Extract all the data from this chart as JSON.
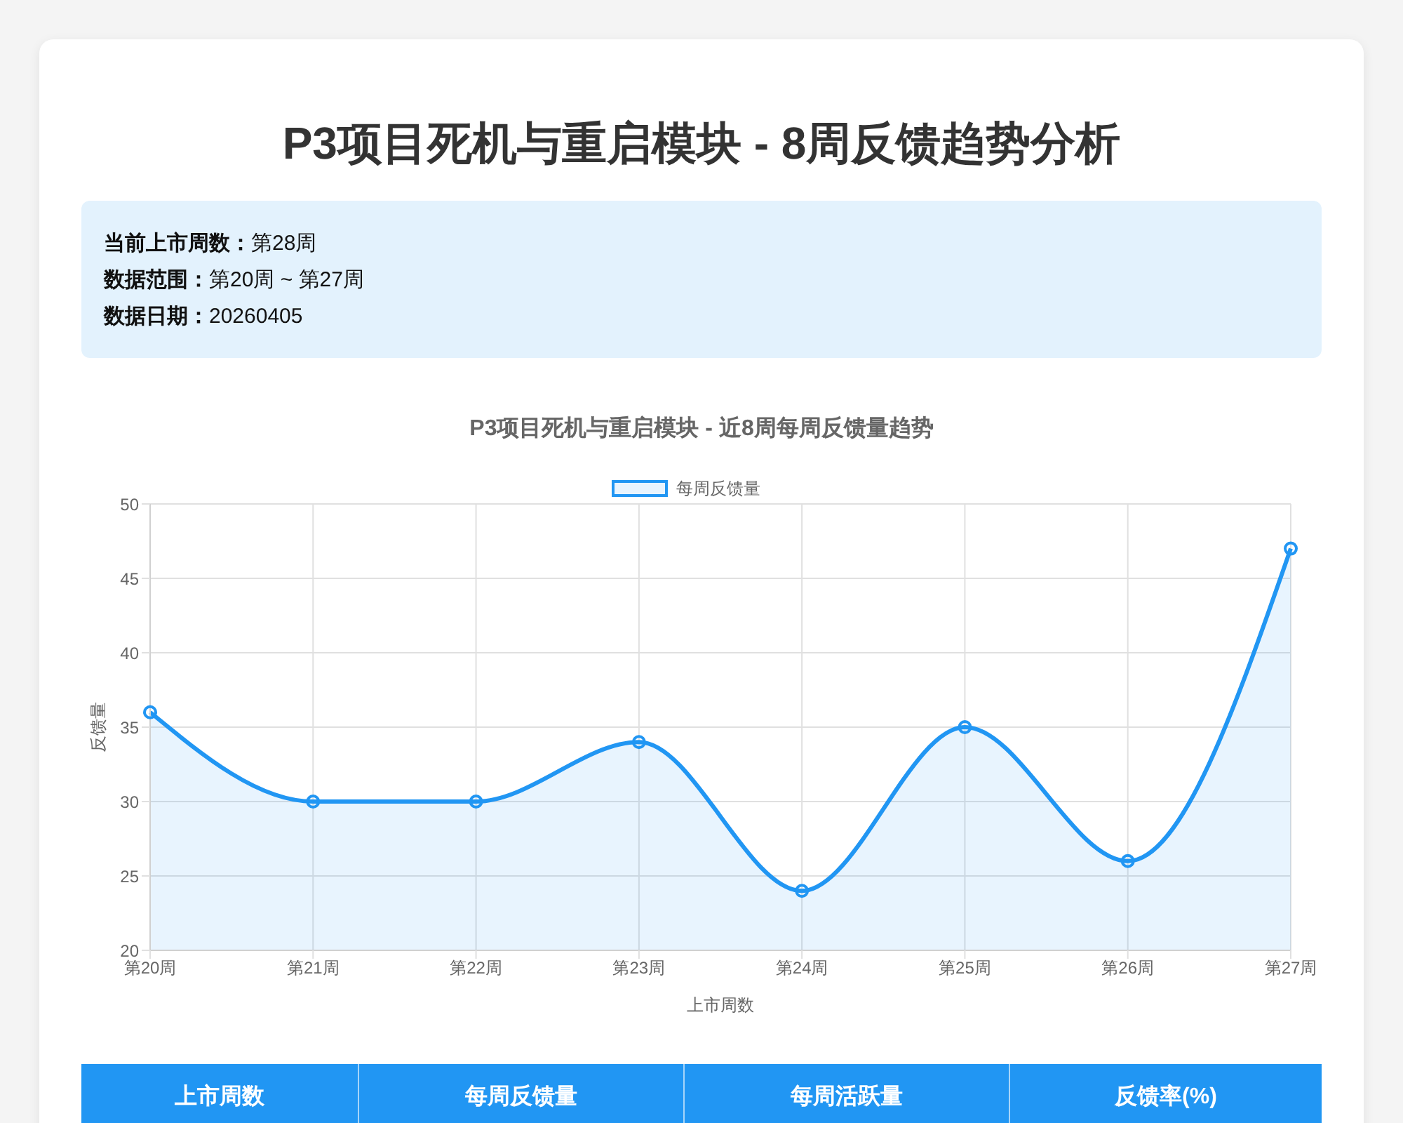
{
  "chart_data": {
    "type": "area",
    "title": "P3项目死机与重启模块 - 8周反馈趋势分析",
    "subtitle": "P3项目死机与重启模块 - 近8周每周反馈量趋势",
    "categories": [
      "第20周",
      "第21周",
      "第22周",
      "第23周",
      "第24周",
      "第25周",
      "第26周",
      "第27周"
    ],
    "series": [
      {
        "name": "每周反馈量",
        "color": "#2196f3",
        "values": [
          36,
          30,
          30,
          34,
          24,
          35,
          26,
          47
        ]
      }
    ],
    "xlabel": "上市周数",
    "ylabel": "反馈量",
    "ylim": [
      20,
      50
    ],
    "yticks": [
      20,
      25,
      30,
      35,
      40,
      45,
      50
    ],
    "grid": true,
    "legend": "top",
    "marker": "circle",
    "annotations": [
      "当前上市周数：第28周",
      "数据范围：第20周 ~ 第27周",
      "数据日期：20260405",
      "上市周数",
      "每周反馈量",
      "每周活跃量",
      "反馈率(%)"
    ]
  }
}
